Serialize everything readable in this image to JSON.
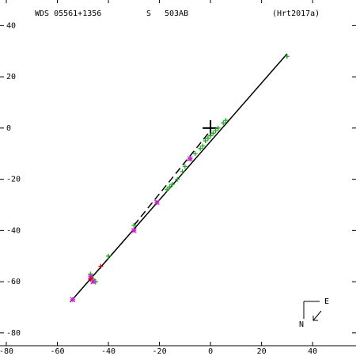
{
  "chart_data": {
    "type": "scatter",
    "header": {
      "id": "WDS 05561+1356",
      "code": "S",
      "pair": "503AB",
      "reference": "(Hrt2017a)"
    },
    "compass": {
      "east": "E",
      "north": "N"
    },
    "xlim": [
      -80,
      57
    ],
    "ylim": [
      -85,
      50
    ],
    "xticks": [
      -80,
      -60,
      -40,
      -20,
      0,
      20,
      40
    ],
    "yticks": [
      40,
      20,
      0,
      -20,
      -40,
      -60,
      -80
    ],
    "lines": [
      {
        "color": "#000000",
        "dash": false,
        "x": [
          -55,
          30
        ],
        "y": [
          -68,
          29
        ]
      },
      {
        "color": "#000000",
        "dash": true,
        "x": [
          -30,
          0
        ],
        "y": [
          -38,
          -1
        ]
      }
    ],
    "series": [
      {
        "color": "#22aa22",
        "marker": "plus",
        "x": [
          -47,
          -46,
          -45,
          -40,
          -30,
          -17,
          -16,
          -15,
          -13,
          -11,
          -10,
          -8,
          -6,
          -4,
          -3,
          -2,
          -1,
          0,
          1,
          2,
          3,
          5,
          6,
          30
        ],
        "y": [
          -57,
          -59,
          -60,
          -50,
          -38,
          -24,
          -23,
          -22,
          -20,
          -17,
          -15,
          -12,
          -10,
          -8,
          -7,
          -5,
          -4,
          -3,
          -2,
          -1,
          0,
          2,
          3,
          28
        ]
      },
      {
        "color": "#cc22cc",
        "marker": "star",
        "x": [
          -54,
          -47,
          -46,
          -30,
          -21,
          -8
        ],
        "y": [
          -67,
          -58,
          -60,
          -40,
          -29,
          -12
        ]
      },
      {
        "color": "#dd0000",
        "marker": "plus",
        "x": [
          -43,
          -47
        ],
        "y": [
          -54,
          -59
        ]
      }
    ]
  }
}
